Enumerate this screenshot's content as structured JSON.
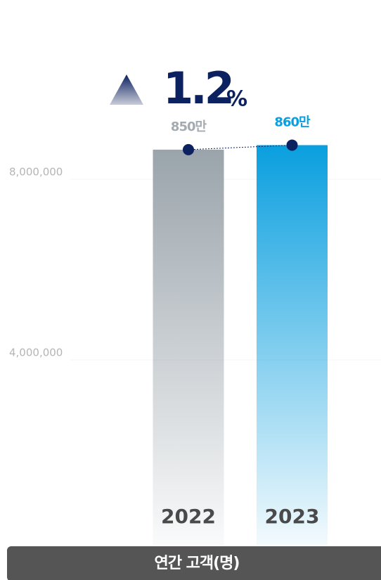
{
  "chart_data": {
    "type": "bar",
    "categories": [
      "2022",
      "2023"
    ],
    "values": [
      8500000,
      8600000
    ],
    "value_labels": [
      "850만",
      "860만"
    ],
    "colors": [
      "#9aa4ab",
      "#0a9fdf"
    ],
    "value_label_colors": [
      "#a3abb1",
      "#0a9fdf"
    ],
    "ylim": [
      0,
      10000000
    ],
    "yticks": [
      {
        "value": 4000000,
        "label": "4,000,000"
      },
      {
        "value": 8000000,
        "label": "8,000,000"
      }
    ],
    "grid": true,
    "change_label": "1.2",
    "change_unit": "%",
    "x_label": "연간 고객(명)"
  }
}
